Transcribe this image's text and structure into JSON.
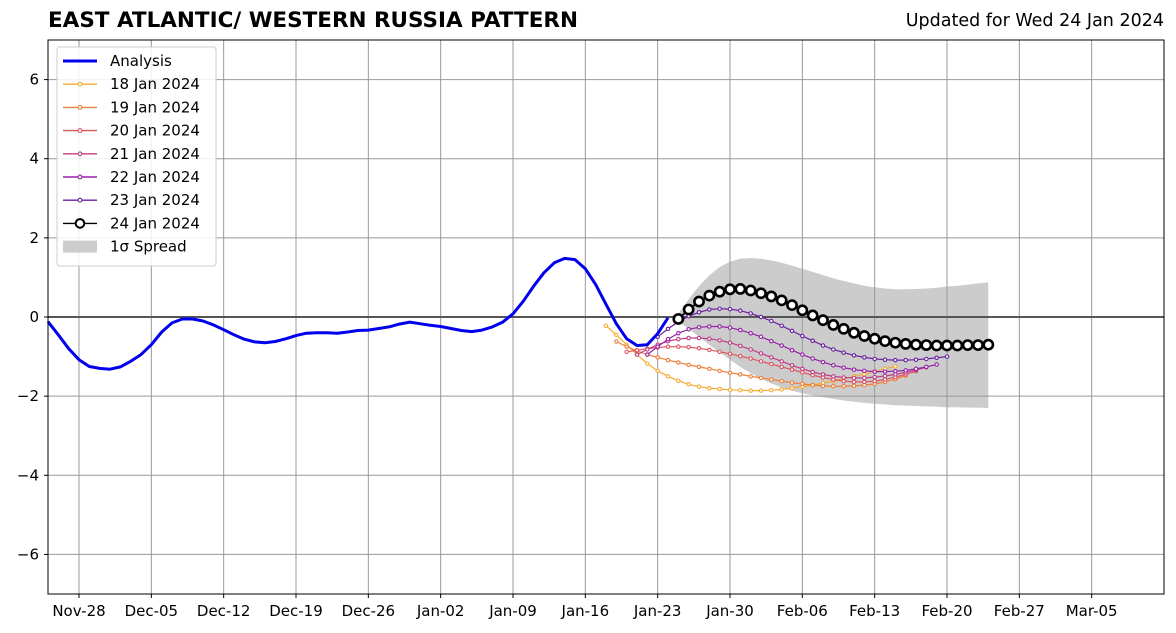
{
  "chart_data": {
    "type": "line",
    "title": "EAST ATLANTIC/ WESTERN RUSSIA PATTERN",
    "subtitle": "Updated for Wed 24 Jan 2024",
    "xlabel": "",
    "ylabel": "",
    "xlim": [
      "2023-11-25",
      "2024-03-12"
    ],
    "ylim": [
      -7,
      7
    ],
    "yticks": [
      -6,
      -4,
      -2,
      0,
      2,
      4,
      6
    ],
    "ytick_labels": [
      "−6",
      "−4",
      "−2",
      "0",
      "2",
      "4",
      "6"
    ],
    "xticks": [
      "2023-11-28",
      "2023-12-05",
      "2023-12-12",
      "2023-12-19",
      "2023-12-26",
      "2024-01-02",
      "2024-01-09",
      "2024-01-16",
      "2024-01-23",
      "2024-01-30",
      "2024-02-06",
      "2024-02-13",
      "2024-02-20",
      "2024-02-27",
      "2024-03-05"
    ],
    "xtick_labels": [
      "Nov-28",
      "Dec-05",
      "Dec-12",
      "Dec-19",
      "Dec-26",
      "Jan-02",
      "Jan-09",
      "Jan-16",
      "Jan-23",
      "Jan-30",
      "Feb-06",
      "Feb-13",
      "Feb-20",
      "Feb-27",
      "Mar-05"
    ],
    "grid": true,
    "legend_position": "top-left",
    "zero_line": 0,
    "colors": {
      "analysis": "#0000ee",
      "spread": "#cccccc",
      "grid": "#999999"
    },
    "analysis": {
      "name": "Analysis",
      "color": "#0000ee",
      "x": [
        "2023-11-25",
        "2023-11-26",
        "2023-11-27",
        "2023-11-28",
        "2023-11-29",
        "2023-11-30",
        "2023-12-01",
        "2023-12-02",
        "2023-12-03",
        "2023-12-04",
        "2023-12-05",
        "2023-12-06",
        "2023-12-07",
        "2023-12-08",
        "2023-12-09",
        "2023-12-10",
        "2023-12-11",
        "2023-12-12",
        "2023-12-13",
        "2023-12-14",
        "2023-12-15",
        "2023-12-16",
        "2023-12-17",
        "2023-12-18",
        "2023-12-19",
        "2023-12-20",
        "2023-12-21",
        "2023-12-22",
        "2023-12-23",
        "2023-12-24",
        "2023-12-25",
        "2023-12-26",
        "2023-12-27",
        "2023-12-28",
        "2023-12-29",
        "2023-12-30",
        "2023-12-31",
        "2024-01-01",
        "2024-01-02",
        "2024-01-03",
        "2024-01-04",
        "2024-01-05",
        "2024-01-06",
        "2024-01-07",
        "2024-01-08",
        "2024-01-09",
        "2024-01-10",
        "2024-01-11",
        "2024-01-12",
        "2024-01-13",
        "2024-01-14",
        "2024-01-15",
        "2024-01-16",
        "2024-01-17",
        "2024-01-18",
        "2024-01-19",
        "2024-01-20",
        "2024-01-21",
        "2024-01-22",
        "2024-01-23",
        "2024-01-24"
      ],
      "values": [
        -0.12,
        -0.45,
        -0.8,
        -1.08,
        -1.25,
        -1.3,
        -1.32,
        -1.26,
        -1.12,
        -0.95,
        -0.7,
        -0.38,
        -0.15,
        -0.05,
        -0.05,
        -0.1,
        -0.2,
        -0.32,
        -0.45,
        -0.56,
        -0.63,
        -0.65,
        -0.62,
        -0.55,
        -0.47,
        -0.41,
        -0.4,
        -0.4,
        -0.41,
        -0.38,
        -0.34,
        -0.33,
        -0.29,
        -0.25,
        -0.18,
        -0.13,
        -0.17,
        -0.21,
        -0.24,
        -0.29,
        -0.34,
        -0.37,
        -0.33,
        -0.25,
        -0.13,
        0.08,
        0.4,
        0.78,
        1.12,
        1.37,
        1.48,
        1.45,
        1.22,
        0.82,
        0.32,
        -0.17,
        -0.55,
        -0.72,
        -0.7,
        -0.42,
        -0.02
      ]
    },
    "series": [
      {
        "name": "18 Jan 2024",
        "color": "#f5ab33",
        "start": "2024-01-18",
        "values": [
          -0.22,
          -0.45,
          -0.7,
          -0.95,
          -1.18,
          -1.36,
          -1.5,
          -1.61,
          -1.7,
          -1.76,
          -1.8,
          -1.82,
          -1.84,
          -1.85,
          -1.86,
          -1.86,
          -1.85,
          -1.83,
          -1.8,
          -1.76,
          -1.72,
          -1.67,
          -1.62,
          -1.56,
          -1.5,
          -1.44,
          -1.38,
          -1.31,
          -1.25
        ]
      },
      {
        "name": "19 Jan 2024",
        "color": "#ee7f3c",
        "start": "2024-01-19",
        "values": [
          -0.62,
          -0.75,
          -0.86,
          -0.95,
          -1.02,
          -1.09,
          -1.15,
          -1.21,
          -1.26,
          -1.31,
          -1.36,
          -1.41,
          -1.45,
          -1.5,
          -1.54,
          -1.58,
          -1.62,
          -1.66,
          -1.69,
          -1.72,
          -1.74,
          -1.75,
          -1.75,
          -1.74,
          -1.72,
          -1.69,
          -1.64,
          -1.57,
          -1.48
        ]
      },
      {
        "name": "20 Jan 2024",
        "color": "#dc5461",
        "start": "2024-01-20",
        "values": [
          -0.88,
          -0.84,
          -0.8,
          -0.77,
          -0.75,
          -0.75,
          -0.76,
          -0.79,
          -0.83,
          -0.88,
          -0.93,
          -0.99,
          -1.05,
          -1.12,
          -1.19,
          -1.26,
          -1.33,
          -1.4,
          -1.47,
          -1.53,
          -1.58,
          -1.62,
          -1.64,
          -1.64,
          -1.62,
          -1.58,
          -1.52,
          -1.45,
          -1.37
        ]
      },
      {
        "name": "21 Jan 2024",
        "color": "#be3e86",
        "start": "2024-01-21",
        "values": [
          -0.95,
          -0.82,
          -0.7,
          -0.61,
          -0.56,
          -0.53,
          -0.53,
          -0.55,
          -0.59,
          -0.65,
          -0.73,
          -0.82,
          -0.92,
          -1.02,
          -1.12,
          -1.22,
          -1.31,
          -1.39,
          -1.45,
          -1.5,
          -1.53,
          -1.54,
          -1.54,
          -1.52,
          -1.49,
          -1.45,
          -1.4,
          -1.34,
          -1.27
        ]
      },
      {
        "name": "22 Jan 2024",
        "color": "#9522a6",
        "start": "2024-01-22",
        "values": [
          -0.95,
          -0.75,
          -0.56,
          -0.41,
          -0.31,
          -0.26,
          -0.24,
          -0.24,
          -0.27,
          -0.33,
          -0.41,
          -0.5,
          -0.61,
          -0.72,
          -0.84,
          -0.95,
          -1.05,
          -1.14,
          -1.22,
          -1.28,
          -1.33,
          -1.36,
          -1.38,
          -1.38,
          -1.37,
          -1.35,
          -1.31,
          -1.26,
          -1.2
        ]
      },
      {
        "name": "23 Jan 2024",
        "color": "#6a1fa0",
        "start": "2024-01-23",
        "values": [
          -0.5,
          -0.3,
          -0.12,
          0.02,
          0.12,
          0.19,
          0.21,
          0.2,
          0.16,
          0.09,
          0.0,
          -0.1,
          -0.22,
          -0.35,
          -0.48,
          -0.6,
          -0.72,
          -0.82,
          -0.9,
          -0.97,
          -1.02,
          -1.06,
          -1.08,
          -1.09,
          -1.09,
          -1.08,
          -1.06,
          -1.03,
          -1.0
        ]
      },
      {
        "name": "24 Jan 2024",
        "color": "#000000",
        "start": "2024-01-25",
        "values": [
          -0.05,
          0.19,
          0.39,
          0.54,
          0.64,
          0.7,
          0.71,
          0.67,
          0.6,
          0.52,
          0.42,
          0.3,
          0.17,
          0.04,
          -0.08,
          -0.2,
          -0.3,
          -0.4,
          -0.48,
          -0.55,
          -0.61,
          -0.65,
          -0.68,
          -0.7,
          -0.71,
          -0.72,
          -0.72,
          -0.72,
          -0.71,
          -0.71,
          -0.7
        ]
      }
    ],
    "spread": {
      "name": "1σ Spread",
      "start": "2024-01-25",
      "upper": [
        0.08,
        0.45,
        0.78,
        1.05,
        1.26,
        1.4,
        1.47,
        1.49,
        1.47,
        1.43,
        1.37,
        1.3,
        1.22,
        1.14,
        1.06,
        0.98,
        0.91,
        0.85,
        0.79,
        0.75,
        0.72,
        0.7,
        0.7,
        0.71,
        0.72,
        0.74,
        0.77,
        0.79,
        0.82,
        0.85,
        0.88
      ],
      "lower": [
        -0.12,
        -0.3,
        -0.5,
        -0.7,
        -0.9,
        -1.08,
        -1.26,
        -1.42,
        -1.56,
        -1.68,
        -1.78,
        -1.86,
        -1.93,
        -1.98,
        -2.03,
        -2.07,
        -2.11,
        -2.14,
        -2.17,
        -2.19,
        -2.21,
        -2.23,
        -2.24,
        -2.25,
        -2.26,
        -2.27,
        -2.28,
        -2.28,
        -2.29,
        -2.29,
        -2.3
      ]
    }
  }
}
